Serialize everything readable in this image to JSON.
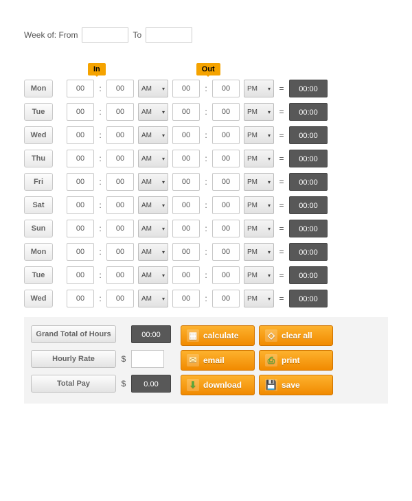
{
  "week": {
    "label_prefix": "Week of: From",
    "label_to": "To",
    "from": "",
    "to": ""
  },
  "tags": {
    "in": "In",
    "out": "Out"
  },
  "rows": [
    {
      "day": "Mon",
      "in_h": "00",
      "in_m": "00",
      "in_ampm": "AM",
      "out_h": "00",
      "out_m": "00",
      "out_ampm": "PM",
      "total": "00:00"
    },
    {
      "day": "Tue",
      "in_h": "00",
      "in_m": "00",
      "in_ampm": "AM",
      "out_h": "00",
      "out_m": "00",
      "out_ampm": "PM",
      "total": "00:00"
    },
    {
      "day": "Wed",
      "in_h": "00",
      "in_m": "00",
      "in_ampm": "AM",
      "out_h": "00",
      "out_m": "00",
      "out_ampm": "PM",
      "total": "00:00"
    },
    {
      "day": "Thu",
      "in_h": "00",
      "in_m": "00",
      "in_ampm": "AM",
      "out_h": "00",
      "out_m": "00",
      "out_ampm": "PM",
      "total": "00:00"
    },
    {
      "day": "Fri",
      "in_h": "00",
      "in_m": "00",
      "in_ampm": "AM",
      "out_h": "00",
      "out_m": "00",
      "out_ampm": "PM",
      "total": "00:00"
    },
    {
      "day": "Sat",
      "in_h": "00",
      "in_m": "00",
      "in_ampm": "AM",
      "out_h": "00",
      "out_m": "00",
      "out_ampm": "PM",
      "total": "00:00"
    },
    {
      "day": "Sun",
      "in_h": "00",
      "in_m": "00",
      "in_ampm": "AM",
      "out_h": "00",
      "out_m": "00",
      "out_ampm": "PM",
      "total": "00:00"
    },
    {
      "day": "Mon",
      "in_h": "00",
      "in_m": "00",
      "in_ampm": "AM",
      "out_h": "00",
      "out_m": "00",
      "out_ampm": "PM",
      "total": "00:00"
    },
    {
      "day": "Tue",
      "in_h": "00",
      "in_m": "00",
      "in_ampm": "AM",
      "out_h": "00",
      "out_m": "00",
      "out_ampm": "PM",
      "total": "00:00"
    },
    {
      "day": "Wed",
      "in_h": "00",
      "in_m": "00",
      "in_ampm": "AM",
      "out_h": "00",
      "out_m": "00",
      "out_ampm": "PM",
      "total": "00:00"
    }
  ],
  "totals": {
    "grand_label": "Grand Total of Hours",
    "grand_value": "00:00",
    "rate_label": "Hourly Rate",
    "rate_value": "",
    "rate_symbol": "$",
    "pay_label": "Total Pay",
    "pay_value": "0.00",
    "pay_symbol": "$"
  },
  "buttons": {
    "calculate": "calculate",
    "clear": "clear all",
    "email": "email",
    "print": "print",
    "download": "download",
    "save": "save"
  },
  "symbols": {
    "colon": ":",
    "equals": "="
  },
  "colors": {
    "accent": "#f18a00",
    "tag": "#f5a300",
    "dark": "#585858"
  }
}
